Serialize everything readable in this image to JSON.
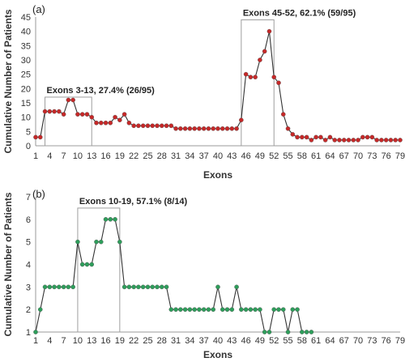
{
  "chart_data": [
    {
      "type": "line",
      "panel_label": "(a)",
      "xlabel": "Exons",
      "ylabel": "Cumulative Number of Patients",
      "ylim": [
        0,
        45
      ],
      "yticks": [
        0,
        5,
        10,
        15,
        20,
        25,
        30,
        35,
        40,
        45
      ],
      "xlim": [
        1,
        79
      ],
      "xticks": [
        1,
        4,
        7,
        10,
        13,
        16,
        19,
        22,
        25,
        28,
        31,
        34,
        37,
        40,
        43,
        46,
        49,
        52,
        55,
        58,
        61,
        64,
        67,
        70,
        73,
        76,
        79
      ],
      "marker_color": "#c62828",
      "line_color": "#333333",
      "grid": false,
      "x": [
        1,
        2,
        3,
        4,
        5,
        6,
        7,
        8,
        9,
        10,
        11,
        12,
        13,
        14,
        15,
        16,
        17,
        18,
        19,
        20,
        21,
        22,
        23,
        24,
        25,
        26,
        27,
        28,
        29,
        30,
        31,
        32,
        33,
        34,
        35,
        36,
        37,
        38,
        39,
        40,
        41,
        42,
        43,
        44,
        45,
        46,
        47,
        48,
        49,
        50,
        51,
        52,
        53,
        54,
        55,
        56,
        57,
        58,
        59,
        60,
        61,
        62,
        63,
        64,
        65,
        66,
        67,
        68,
        69,
        70,
        71,
        72,
        73,
        74,
        75,
        76,
        77,
        78,
        79
      ],
      "values": [
        3,
        3,
        12,
        12,
        12,
        12,
        11,
        16,
        16,
        11,
        11,
        11,
        10,
        8,
        8,
        8,
        8,
        10,
        9,
        11,
        8,
        7,
        7,
        7,
        7,
        7,
        7,
        7,
        7,
        7,
        6,
        6,
        6,
        6,
        6,
        6,
        6,
        6,
        6,
        6,
        6,
        6,
        6,
        6,
        9,
        25,
        24,
        24,
        30,
        33,
        40,
        24,
        22,
        11,
        6,
        4,
        3,
        3,
        3,
        2,
        3,
        3,
        2,
        3,
        2,
        2,
        2,
        2,
        2,
        2,
        3,
        3,
        3,
        2,
        2,
        2,
        2,
        2,
        2
      ],
      "annotations": [
        {
          "text": "Exons 3-13, 27.4% (26/95)",
          "x_range": [
            3,
            13
          ],
          "y_top": 17
        },
        {
          "text": "Exons 45-52, 62.1% (59/95)",
          "x_range": [
            45,
            52
          ],
          "y_top": 44
        }
      ]
    },
    {
      "type": "line",
      "panel_label": "(b)",
      "xlabel": "Exons",
      "ylabel": "Cumulative Number of Patients",
      "ylim": [
        1,
        7
      ],
      "yticks": [
        1,
        2,
        3,
        4,
        5,
        6,
        7
      ],
      "xlim": [
        1,
        79
      ],
      "xticks": [
        1,
        4,
        7,
        10,
        13,
        16,
        19,
        22,
        25,
        28,
        31,
        34,
        37,
        40,
        43,
        46,
        49,
        52,
        55,
        58,
        61,
        64,
        67,
        70,
        73,
        76,
        79
      ],
      "marker_color": "#2e9e5b",
      "line_color": "#333333",
      "grid": false,
      "x": [
        1,
        2,
        3,
        4,
        5,
        6,
        7,
        8,
        9,
        10,
        11,
        12,
        13,
        14,
        15,
        16,
        17,
        18,
        19,
        20,
        21,
        22,
        23,
        24,
        25,
        26,
        27,
        28,
        29,
        30,
        31,
        32,
        33,
        34,
        35,
        36,
        37,
        38,
        39,
        40,
        41,
        42,
        43,
        44,
        45,
        46,
        47,
        48,
        49,
        50,
        51,
        52,
        53,
        54,
        55,
        56,
        57,
        58,
        59,
        60
      ],
      "values": [
        1,
        2,
        3,
        3,
        3,
        3,
        3,
        3,
        3,
        5,
        4,
        4,
        4,
        5,
        5,
        6,
        6,
        6,
        5,
        3,
        3,
        3,
        3,
        3,
        3,
        3,
        3,
        3,
        3,
        2,
        2,
        2,
        2,
        2,
        2,
        2,
        2,
        2,
        2,
        3,
        2,
        2,
        2,
        3,
        2,
        2,
        2,
        2,
        2,
        1,
        1,
        2,
        2,
        2,
        1,
        2,
        2,
        1,
        1,
        1
      ],
      "annotations": [
        {
          "text": "Exons 10-19, 57.1% (8/14)",
          "x_range": [
            10,
            19
          ],
          "y_top": 6.5
        }
      ]
    }
  ]
}
